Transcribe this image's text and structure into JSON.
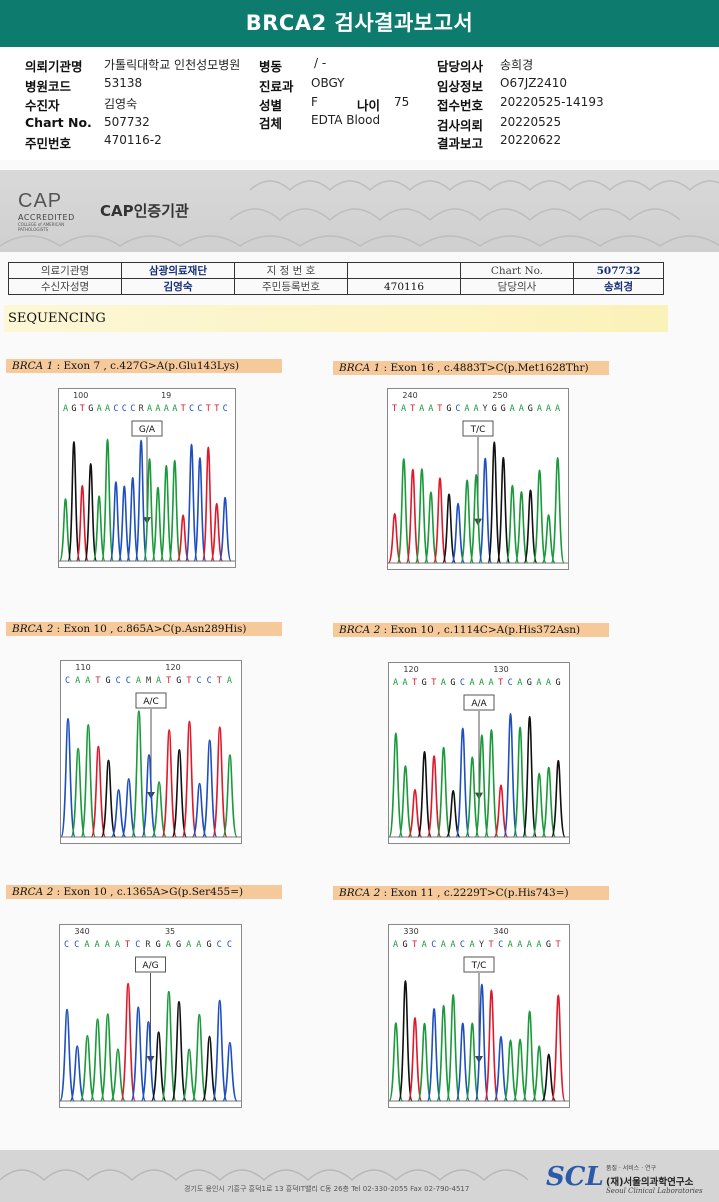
{
  "title": "BRCA2 검사결과보고서",
  "header": {
    "rows": [
      {
        "l1": "의뢰기관명",
        "v1": "가톨릭대학교 인천성모병원",
        "l2": "병동",
        "v2": "/ -",
        "l3": "담당의사",
        "v3": "송희경"
      },
      {
        "l1": "병원코드",
        "v1": "53138",
        "l2": "진료과",
        "v2": "OBGY",
        "l3": "임상정보",
        "v3": "O67JZ2410"
      },
      {
        "l1": "수진자",
        "v1": "김영숙",
        "l2": "성별",
        "v2": "F",
        "l3": "접수번호",
        "v3": "20220525-14193"
      },
      {
        "l1": "Chart No.",
        "v1": "507732",
        "l2": "검체",
        "v2": "EDTA Blood",
        "l3": "검사의뢰",
        "v3": "20220525"
      },
      {
        "l1": "주민번호",
        "v1": "470116-2",
        "l2": "",
        "v2": "",
        "l3": "결과보고",
        "v3": "20220622"
      }
    ],
    "age_label": "나이",
    "age_value": "75"
  },
  "cap": {
    "logo_text": "CAP",
    "accredited": "ACCREDITED",
    "college": "COLLEGE of AMERICAN PATHOLOGISTS",
    "cert_label": "CAP인증기관"
  },
  "info_table": {
    "row1": [
      "의료기관명",
      "삼광의료재단",
      "지 정 번 호",
      "",
      "Chart No.",
      "507732"
    ],
    "row2": [
      "수신자성명",
      "김영숙",
      "주민등록번호",
      "470116",
      "담당의사",
      "송희경"
    ]
  },
  "section": "SEQUENCING",
  "panels": [
    {
      "gene": "BRCA 1",
      "detail": " : Exon 7 , c.427G>A(p.Glu143Lys)",
      "call": "G/A",
      "ticks": [
        "100",
        "19"
      ],
      "seq": "AGTGAACCCRAAAATCCTTC"
    },
    {
      "gene": "BRCA 1",
      "detail": " : Exon 16 , c.4883T>C(p.Met1628Thr)",
      "call": "T/C",
      "ticks": [
        "240",
        "250"
      ],
      "seq": "TATAATGCAAYGGAAGAAA"
    },
    {
      "gene": "BRCA 2",
      "detail": " : Exon 10 , c.865A>C(p.Asn289His)",
      "call": "A/C",
      "ticks": [
        "110",
        "120"
      ],
      "seq": "CAATGCCAMATGTCCTA"
    },
    {
      "gene": "BRCA 2",
      "detail": " : Exon 10 , c.1114C>A(p.His372Asn)",
      "call": "A/A",
      "ticks": [
        "120",
        "130"
      ],
      "seq": "AATGTAGCAAATCAGAAG"
    },
    {
      "gene": "BRCA 2",
      "detail": " : Exon 10 , c.1365A>G(p.Ser455=)",
      "call": "A/G",
      "ticks": [
        "340",
        "35"
      ],
      "seq": "CCAAAATCRGAGAAGCC"
    },
    {
      "gene": "BRCA 2",
      "detail": " : Exon 11 , c.2229T>C(p.His743=)",
      "call": "T/C",
      "ticks": [
        "330",
        "340"
      ],
      "seq": "AGTACAACAYTCAAAAGT"
    }
  ],
  "footer": {
    "address": "경기도 용인시 기흥구 흥덕1로 13 흥덕IT밸리 C동 26층  Tel 02-330-2055  Fax 02-790-4517",
    "scl_logo": "SCL",
    "scl_tag": "품질 · 서비스 · 연구",
    "scl_name": "(재)서울의과학연구소",
    "scl_en": "Seoul Clinical Laboratories"
  },
  "colors": {
    "title_bg": "#0d7c6e",
    "label_bg": "#f6c99a",
    "A": "#1a9a3a",
    "C": "#1f4fbf",
    "G": "#111111",
    "T": "#e0182a"
  }
}
